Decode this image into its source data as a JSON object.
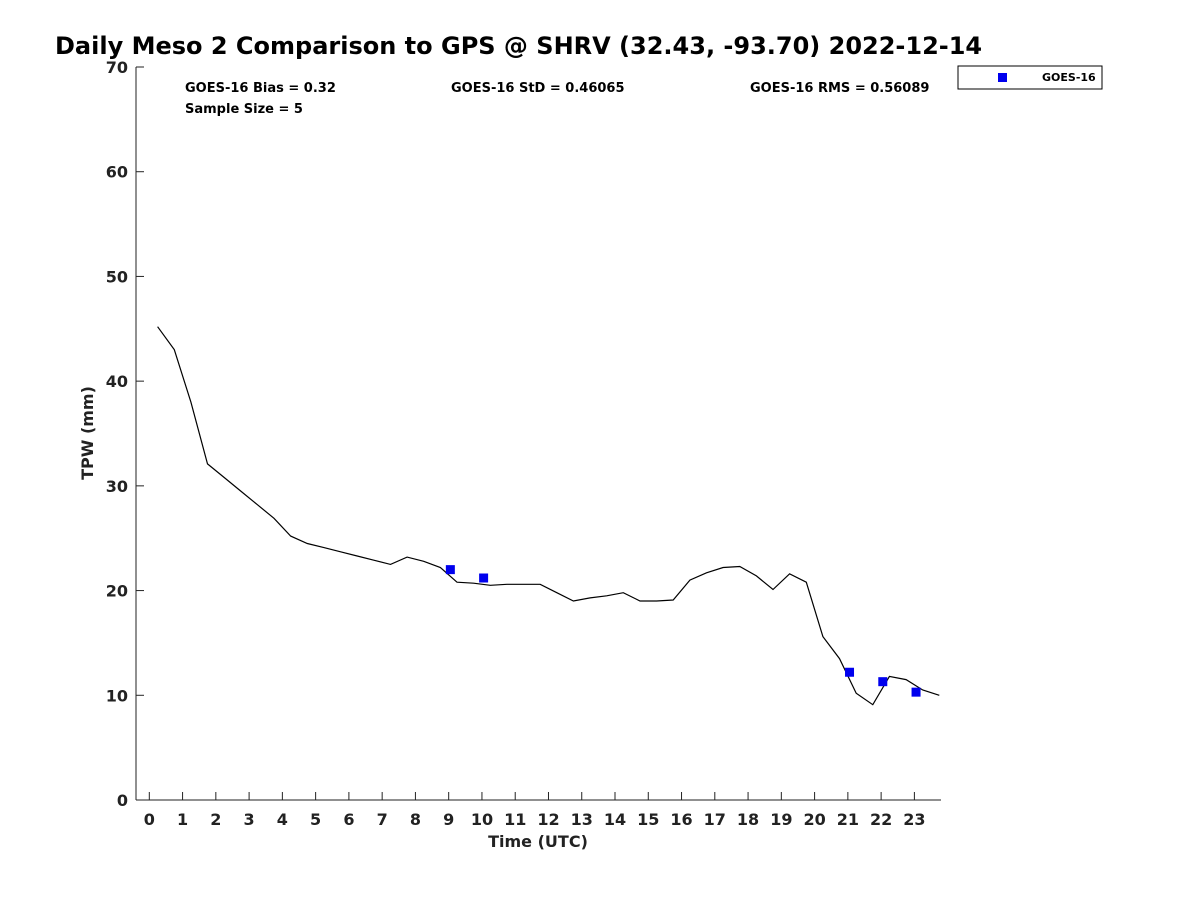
{
  "chart_data": {
    "type": "line",
    "title": "Daily Meso 2 Comparison to GPS @ SHRV (32.43, -93.70) 2022-12-14",
    "xlabel": "Time (UTC)",
    "ylabel": "TPW (mm)",
    "xlim": [
      -0.4,
      23.8
    ],
    "ylim": [
      0,
      70
    ],
    "xticks": [
      0,
      1,
      2,
      3,
      4,
      5,
      6,
      7,
      8,
      9,
      10,
      11,
      12,
      13,
      14,
      15,
      16,
      17,
      18,
      19,
      20,
      21,
      22,
      23
    ],
    "yticks": [
      0,
      10,
      20,
      30,
      40,
      50,
      60,
      70
    ],
    "grid": false,
    "legend": {
      "placement": "top-right outside",
      "entries": [
        "GOES-16"
      ]
    },
    "stats": {
      "bias": "GOES-16 Bias = 0.32",
      "std": "GOES-16 StD = 0.46065",
      "rms": "GOES-16 RMS = 0.56089",
      "sample": "Sample Size = 5"
    },
    "series": [
      {
        "kind": "line",
        "color": "#000000",
        "points": [
          [
            0.25,
            45.2
          ],
          [
            0.75,
            43.0
          ],
          [
            1.25,
            38.0
          ],
          [
            1.75,
            32.1
          ],
          [
            2.25,
            30.8
          ],
          [
            2.75,
            29.5
          ],
          [
            3.25,
            28.2
          ],
          [
            3.75,
            26.9
          ],
          [
            4.25,
            25.2
          ],
          [
            4.75,
            24.5
          ],
          [
            5.25,
            24.1
          ],
          [
            5.75,
            23.7
          ],
          [
            6.25,
            23.3
          ],
          [
            6.75,
            22.9
          ],
          [
            7.25,
            22.5
          ],
          [
            7.75,
            23.2
          ],
          [
            8.25,
            22.8
          ],
          [
            8.75,
            22.2
          ],
          [
            9.25,
            20.8
          ],
          [
            9.75,
            20.7
          ],
          [
            10.25,
            20.5
          ],
          [
            10.75,
            20.6
          ],
          [
            11.25,
            20.6
          ],
          [
            11.75,
            20.6
          ],
          [
            12.25,
            19.8
          ],
          [
            12.75,
            19.0
          ],
          [
            13.25,
            19.3
          ],
          [
            13.75,
            19.5
          ],
          [
            14.25,
            19.8
          ],
          [
            14.75,
            19.0
          ],
          [
            15.25,
            19.0
          ],
          [
            15.75,
            19.1
          ],
          [
            16.25,
            21.0
          ],
          [
            16.75,
            21.7
          ],
          [
            17.25,
            22.2
          ],
          [
            17.75,
            22.3
          ],
          [
            18.25,
            21.4
          ],
          [
            18.75,
            20.1
          ],
          [
            19.25,
            21.6
          ],
          [
            19.75,
            20.8
          ],
          [
            20.25,
            15.6
          ],
          [
            20.75,
            13.5
          ],
          [
            21.25,
            10.2
          ],
          [
            21.75,
            9.1
          ],
          [
            22.25,
            11.8
          ],
          [
            22.75,
            11.5
          ],
          [
            23.25,
            10.5
          ],
          [
            23.75,
            10.0
          ]
        ]
      },
      {
        "name": "GOES-16",
        "kind": "markers",
        "color": "#0000ee",
        "points": [
          [
            9.05,
            22.0
          ],
          [
            10.05,
            21.2
          ],
          [
            21.05,
            12.2
          ],
          [
            22.05,
            11.3
          ],
          [
            23.05,
            10.3
          ]
        ]
      }
    ]
  }
}
